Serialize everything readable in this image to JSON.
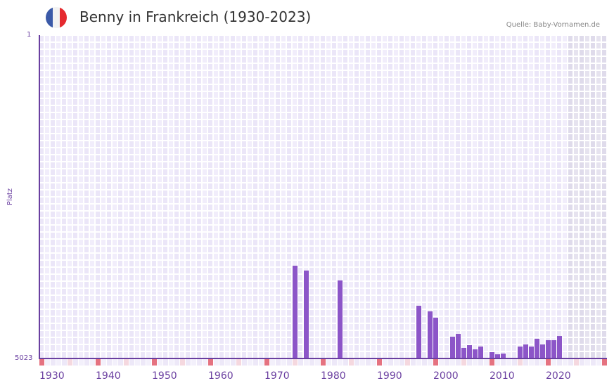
{
  "header": {
    "title": "Benny in Frankreich (1930-2023)",
    "source": "Quelle: Baby-Vornamen.de",
    "flag": "france-flag-icon",
    "flag_colors": [
      "#3b5aa8",
      "#f2f2f2",
      "#e52a2f"
    ]
  },
  "colors": {
    "bar": "#8c55c8",
    "axis": "#6a3fa0",
    "grid_a": "#f1edfb",
    "grid_b": "#ebe6f8",
    "future_a": "#e6e3ef",
    "future_b": "#dfdbeb",
    "decade_marker": "#e57280",
    "half_decade_marker": "#f5d8df"
  },
  "chart_data": {
    "type": "bar",
    "title": "Benny in Frankreich (1930-2023)",
    "xlabel": "",
    "ylabel": "Platz",
    "y_axis_inverted": true,
    "ylim": [
      5023,
      1
    ],
    "yticks": [
      "1",
      "5023"
    ],
    "xticks": [
      "1930",
      "1940",
      "1950",
      "1960",
      "1970",
      "1980",
      "1990",
      "2000",
      "2010",
      "2020"
    ],
    "x_range": [
      1930,
      2030
    ],
    "grid": true,
    "legend": null,
    "shaded_region": {
      "from": 2024,
      "to": 2030,
      "note": "future years shaded gray"
    },
    "categories": [
      1975,
      1977,
      1983,
      1997,
      1999,
      2000,
      2003,
      2004,
      2005,
      2006,
      2007,
      2008,
      2010,
      2011,
      2012,
      2015,
      2016,
      2017,
      2018,
      2019,
      2020,
      2021,
      2022
    ],
    "series": [
      {
        "name": "Platz (Rang)",
        "values": [
          3582,
          3657,
          3811,
          4204,
          4291,
          4390,
          4685,
          4641,
          4859,
          4816,
          4881,
          4838,
          4925,
          4958,
          4947,
          4838,
          4805,
          4838,
          4717,
          4805,
          4739,
          4739,
          4674
        ]
      }
    ]
  },
  "axis": {
    "y_label": "Platz",
    "y_top": "1",
    "y_bottom": "5023",
    "x_labels": [
      "1930",
      "1940",
      "1950",
      "1960",
      "1970",
      "1980",
      "1990",
      "2000",
      "2010",
      "2020"
    ]
  }
}
